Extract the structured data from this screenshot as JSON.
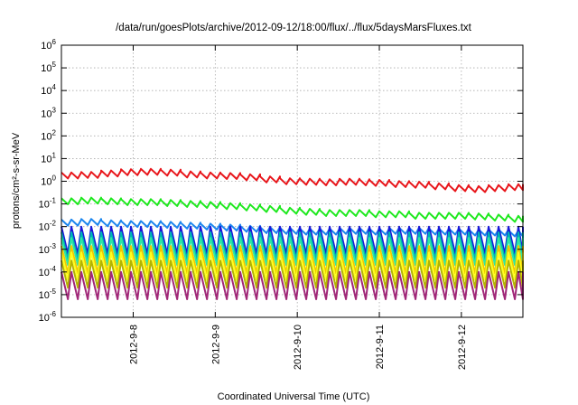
{
  "chart_data": {
    "type": "line",
    "title": "/data/run/goesPlots/archive/2012-09-12/18:00/flux/../flux/5daysMarsFluxes.txt",
    "xlabel": "Coordinated Universal Time (UTC)",
    "ylabel": "protons/cm²-s-sr-MeV",
    "y_scale": "log",
    "ylim_exponents": [
      -6,
      6
    ],
    "y_tick_exponents": [
      -6,
      -5,
      -4,
      -3,
      -2,
      -1,
      0,
      1,
      2,
      3,
      4,
      5,
      6
    ],
    "x_ticks": [
      "2012-9-8",
      "2012-9-9",
      "2012-9-10",
      "2012-9-11",
      "2012-9-12"
    ],
    "x_range_days": [
      "2012-09-07 03:00",
      "2012-09-12 18:00"
    ],
    "grid": true,
    "legend": "none",
    "series": [
      {
        "color": "#e8161b",
        "values": [
          1.8,
          1.9,
          2.2,
          2.5,
          2.6,
          2.4,
          2.0,
          1.8,
          1.7,
          1.5,
          1.2,
          1.0,
          0.95,
          0.9,
          0.95,
          0.9,
          0.85,
          0.75,
          0.7,
          0.6,
          0.5,
          0.45,
          0.5,
          0.55
        ]
      },
      {
        "color": "#1ee81e",
        "values": [
          0.13,
          0.14,
          0.13,
          0.12,
          0.12,
          0.11,
          0.1,
          0.09,
          0.08,
          0.07,
          0.06,
          0.05,
          0.045,
          0.04,
          0.04,
          0.04,
          0.035,
          0.035,
          0.03,
          0.03,
          0.03,
          0.028,
          0.025,
          0.022
        ]
      },
      {
        "color": "#1c86ee",
        "values": [
          0.015,
          0.016,
          0.014,
          0.013,
          0.013,
          0.012,
          0.011,
          0.01,
          0.009,
          0.008,
          0.007,
          0.0065,
          0.006,
          0.006,
          0.0065,
          0.0065,
          0.006,
          0.0065,
          0.0065,
          0.006,
          0.006,
          0.0055,
          0.0055,
          0.005
        ]
      },
      {
        "color": "#1a1ad8",
        "values": [
          0.0025,
          0.0025,
          0.0025,
          0.0025,
          0.0025,
          0.0025,
          0.0025,
          0.0025,
          0.0025,
          0.0025,
          0.0025,
          0.0025,
          0.0025,
          0.0025,
          0.0025,
          0.0025,
          0.0025,
          0.0025,
          0.0025,
          0.0025,
          0.0025,
          0.0025,
          0.0025,
          0.0025
        ]
      },
      {
        "color": "#00b4b4",
        "values": [
          0.0014,
          0.0014,
          0.0014,
          0.0014,
          0.0014,
          0.0014,
          0.0014,
          0.0014,
          0.0014,
          0.0014,
          0.0014,
          0.0014,
          0.0014,
          0.0014,
          0.0014,
          0.0014,
          0.0014,
          0.0014,
          0.0014,
          0.0014,
          0.0014,
          0.0014,
          0.0014,
          0.0014
        ]
      },
      {
        "color": "#2ee8a0",
        "values": [
          0.0008,
          0.0008,
          0.0008,
          0.0008,
          0.0008,
          0.0008,
          0.0008,
          0.0008,
          0.0008,
          0.0008,
          0.0008,
          0.0008,
          0.0008,
          0.0008,
          0.0008,
          0.0008,
          0.0008,
          0.0008,
          0.0008,
          0.0008,
          0.0008,
          0.0008,
          0.0008,
          0.0008
        ]
      },
      {
        "color": "#f0c800",
        "values": [
          0.00035,
          0.00035,
          0.00035,
          0.00035,
          0.00035,
          0.00035,
          0.00035,
          0.00035,
          0.00035,
          0.00035,
          0.00035,
          0.00035,
          0.00035,
          0.00035,
          0.00035,
          0.00035,
          0.00035,
          0.00035,
          0.00035,
          0.00035,
          0.00035,
          0.00035,
          0.00035,
          0.00035
        ]
      },
      {
        "color": "#ffff1e",
        "values": [
          0.00018,
          0.00018,
          0.00018,
          0.00018,
          0.00018,
          0.00018,
          0.00018,
          0.00018,
          0.00018,
          0.00018,
          0.00018,
          0.00018,
          0.00018,
          0.00018,
          0.00018,
          0.00018,
          0.00018,
          0.00018,
          0.00018,
          0.00018,
          0.00018,
          0.00018,
          0.00018,
          0.00018
        ]
      },
      {
        "color": "#b4b400",
        "values": [
          8e-05,
          8e-05,
          8e-05,
          8e-05,
          8e-05,
          8e-05,
          8e-05,
          8e-05,
          8e-05,
          8e-05,
          8e-05,
          8e-05,
          8e-05,
          8e-05,
          8e-05,
          8e-05,
          8e-05,
          8e-05,
          8e-05,
          8e-05,
          8e-05,
          8e-05,
          8e-05,
          8e-05
        ]
      },
      {
        "color": "#a02878",
        "values": [
          2.5e-05,
          2.5e-05,
          2.5e-05,
          2.5e-05,
          2.5e-05,
          2.5e-05,
          2.5e-05,
          2.5e-05,
          2.5e-05,
          2.5e-05,
          2.5e-05,
          2.5e-05,
          2.5e-05,
          2.5e-05,
          2.5e-05,
          2.5e-05,
          2.5e-05,
          2.5e-05,
          2.5e-05,
          2.5e-05,
          2.5e-05,
          2.5e-05,
          2.5e-05,
          2.5e-05
        ]
      }
    ]
  }
}
